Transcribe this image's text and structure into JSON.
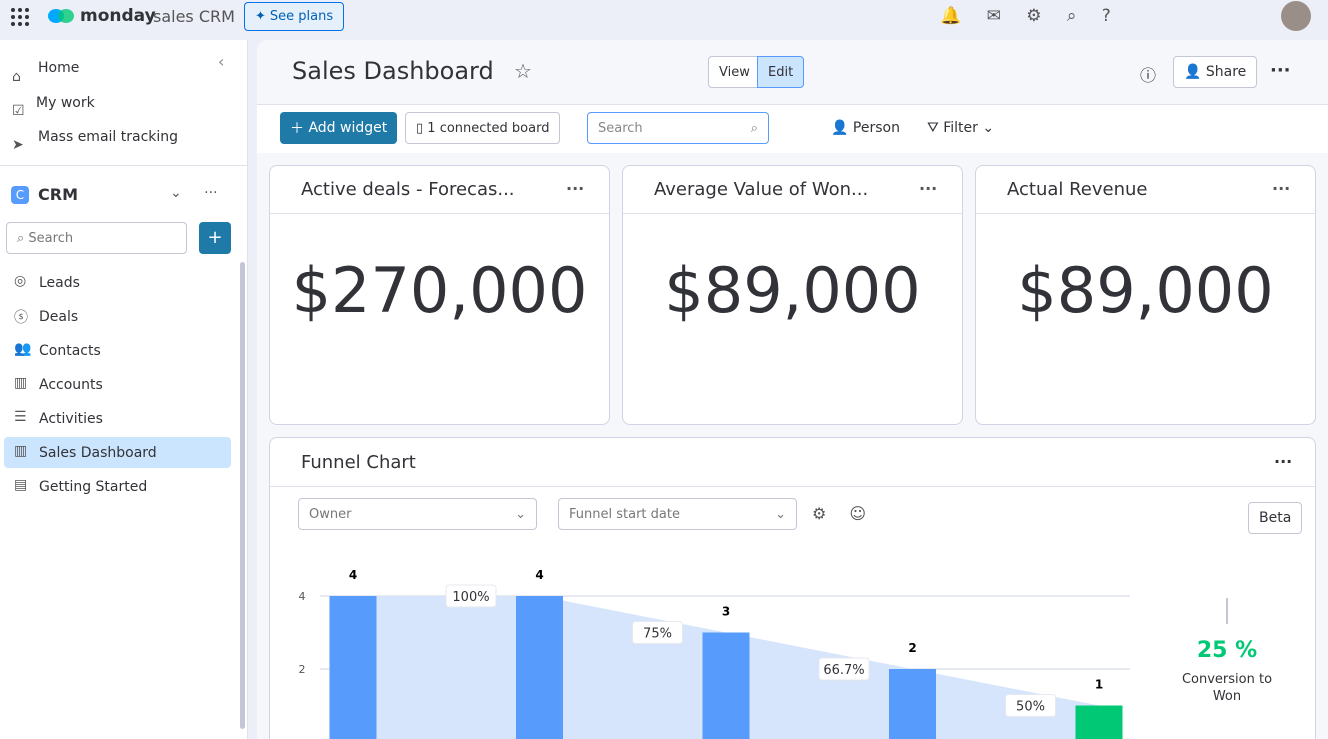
{
  "topbar": {
    "brand": "monday",
    "product": "sales CRM",
    "see_plans": "See plans"
  },
  "sidebar": {
    "home": "Home",
    "my_work": "My work",
    "mass_email": "Mass email tracking",
    "workspace": "CRM",
    "search": "Search",
    "items": [
      "Leads",
      "Deals",
      "Contacts",
      "Accounts",
      "Activities",
      "Sales Dashboard",
      "Getting Started"
    ]
  },
  "header": {
    "title": "Sales Dashboard",
    "view": "View",
    "edit": "Edit",
    "share": "Share"
  },
  "toolbar": {
    "add_widget": "Add widget",
    "connected": "1 connected board",
    "search": "Search",
    "person": "Person",
    "filter": "Filter"
  },
  "widgets": [
    {
      "title": "Active deals - Forecas...",
      "value": "$270,000"
    },
    {
      "title": "Average Value of Won...",
      "value": "$89,000"
    },
    {
      "title": "Actual Revenue",
      "value": "$89,000"
    }
  ],
  "funnel": {
    "title": "Funnel Chart",
    "owner": "Owner",
    "start_date": "Funnel start date",
    "beta": "Beta",
    "conversion": "25 %",
    "conversion_label": "Conversion to Won"
  },
  "chart_data": {
    "type": "funnel",
    "categories": [
      null,
      null,
      null,
      null,
      null
    ],
    "values": [
      4,
      4,
      3,
      2,
      1
    ],
    "colors": [
      "#579bfc",
      "#579bfc",
      "#579bfc",
      "#579bfc",
      "#00c875"
    ],
    "area_color": "#d6e4fc",
    "ylim": [
      0,
      4
    ],
    "yticks": [
      2,
      4
    ],
    "grid": true,
    "conversion_rates": {
      "values": [
        100,
        75,
        66.7,
        50
      ],
      "value_labels": [
        "100%",
        "75%",
        "66.7%",
        "50%"
      ]
    }
  }
}
